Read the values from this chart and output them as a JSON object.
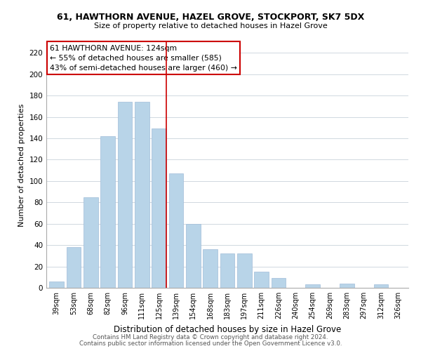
{
  "title": "61, HAWTHORN AVENUE, HAZEL GROVE, STOCKPORT, SK7 5DX",
  "subtitle": "Size of property relative to detached houses in Hazel Grove",
  "xlabel": "Distribution of detached houses by size in Hazel Grove",
  "ylabel": "Number of detached properties",
  "categories": [
    "39sqm",
    "53sqm",
    "68sqm",
    "82sqm",
    "96sqm",
    "111sqm",
    "125sqm",
    "139sqm",
    "154sqm",
    "168sqm",
    "183sqm",
    "197sqm",
    "211sqm",
    "226sqm",
    "240sqm",
    "254sqm",
    "269sqm",
    "283sqm",
    "297sqm",
    "312sqm",
    "326sqm"
  ],
  "values": [
    6,
    38,
    85,
    142,
    174,
    174,
    149,
    107,
    60,
    36,
    32,
    32,
    15,
    9,
    0,
    3,
    0,
    4,
    0,
    3,
    0
  ],
  "bar_color": "#b8d4e8",
  "bar_edge_color": "#a0bcd8",
  "highlight_index": 6,
  "highlight_line_color": "#cc0000",
  "annotation_line1": "61 HAWTHORN AVENUE: 124sqm",
  "annotation_line2": "← 55% of detached houses are smaller (585)",
  "annotation_line3": "43% of semi-detached houses are larger (460) →",
  "annotation_box_edge_color": "#cc0000",
  "ylim": [
    0,
    230
  ],
  "yticks": [
    0,
    20,
    40,
    60,
    80,
    100,
    120,
    140,
    160,
    180,
    200,
    220
  ],
  "footer1": "Contains HM Land Registry data © Crown copyright and database right 2024.",
  "footer2": "Contains public sector information licensed under the Open Government Licence v3.0."
}
